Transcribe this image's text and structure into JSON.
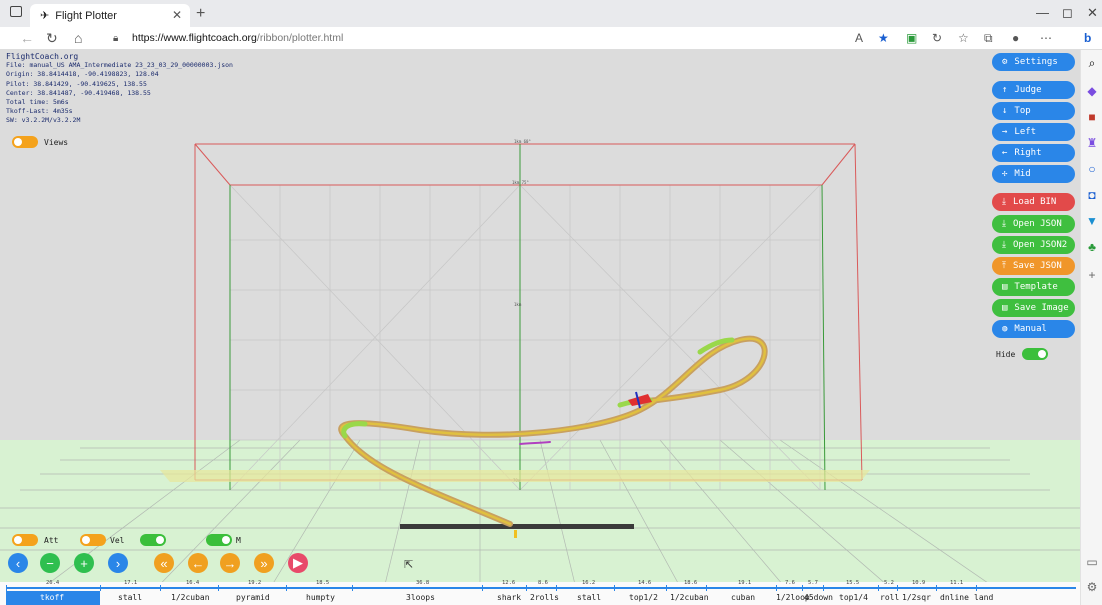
{
  "browser": {
    "tab_title": "Flight Plotter",
    "url_host": "https://www.flightcoach.org",
    "url_path": "/ribbon/plotter.html"
  },
  "info": {
    "site": "FlightCoach.org",
    "lines": [
      "File: manual_US AMA_Intermediate 23_23_03_29_00000003.json",
      "Origin: 38.8414418, -90.4198823, 128.04",
      "Pilot: 38.841429, -90.419625, 138.55",
      "Center: 38.841487, -90.419468, 138.55",
      "Total time: 5m6s",
      "Tkoff-Last: 4m35s",
      "SW: v3.2.2M/v3.2.2M"
    ]
  },
  "toggles": {
    "views": "Views",
    "att": "Att",
    "vel": "Vel",
    "m": "M",
    "hide": "Hide"
  },
  "right_buttons": [
    {
      "label": "Settings",
      "icon": "gear-icon",
      "color": "#2a86e8"
    },
    {
      "label": "Judge",
      "icon": "arrow-up-icon",
      "color": "#2a86e8"
    },
    {
      "label": "Top",
      "icon": "arrow-down-icon",
      "color": "#2a86e8"
    },
    {
      "label": "Left",
      "icon": "arrow-right-icon",
      "color": "#2a86e8"
    },
    {
      "label": "Right",
      "icon": "arrow-left-icon",
      "color": "#2a86e8"
    },
    {
      "label": "Mid",
      "icon": "crosshair-icon",
      "color": "#2a86e8"
    },
    {
      "label": "Load BIN",
      "icon": "download-icon",
      "color": "#e24a4a"
    },
    {
      "label": "Open JSON",
      "icon": "download-icon",
      "color": "#3fbf3f"
    },
    {
      "label": "Open JSON2",
      "icon": "download-icon",
      "color": "#3fbf3f"
    },
    {
      "label": "Save JSON",
      "icon": "upload-icon",
      "color": "#f0962a"
    },
    {
      "label": "Template",
      "icon": "document-icon",
      "color": "#3fbf3f"
    },
    {
      "label": "Save Image",
      "icon": "document-icon",
      "color": "#3fbf3f"
    },
    {
      "label": "Manual",
      "icon": "globe-icon",
      "color": "#2a86e8"
    }
  ],
  "box_labels": [
    "1km 60°",
    "1km 75°",
    "1km",
    "70m"
  ],
  "timeline": {
    "durations": [
      "26.4",
      "17.1",
      "16.4",
      "19.2",
      "18.5",
      "36.8",
      "12.6",
      "8.6",
      "16.2",
      "14.6",
      "18.6",
      "19.1",
      "7.6",
      "5.7",
      "15.5",
      "5.2",
      "10.9",
      "11.1"
    ],
    "segments": [
      "tkoff",
      "stall",
      "1/2cuban",
      "pyramid",
      "humpty",
      "3loops",
      "shark",
      "2rolls",
      "stall",
      "top1/2",
      "1/2cuban",
      "cuban",
      "1/2loop",
      "45down",
      "top1/4",
      "roll",
      "1/2sqr",
      "dnline",
      "land"
    ]
  }
}
